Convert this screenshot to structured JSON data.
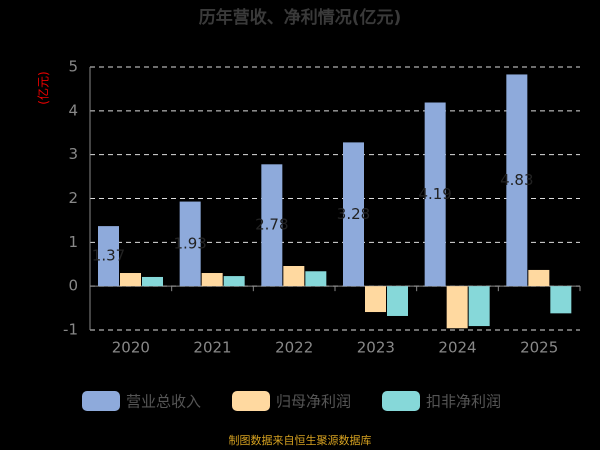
{
  "chart_data": {
    "type": "bar",
    "title": "历年营收、净利情况(亿元)",
    "y_label": "(亿元)",
    "categories": [
      "2020",
      "2021",
      "2022",
      "2023",
      "2024",
      "2025"
    ],
    "series": [
      {
        "name": "营业总收入",
        "color": "#8eaadb",
        "values": [
          1.37,
          1.93,
          2.78,
          3.28,
          4.19,
          4.83
        ],
        "labels": true
      },
      {
        "name": "归母净利润",
        "color": "#ffd9a0",
        "values": [
          0.3,
          0.3,
          0.46,
          -0.59,
          -0.96,
          0.37
        ]
      },
      {
        "name": "扣非净利润",
        "color": "#86d8d9",
        "values": [
          0.21,
          0.23,
          0.34,
          -0.68,
          -0.91,
          -0.62
        ]
      }
    ],
    "ylim": [
      -1,
      5
    ],
    "yticks": [
      -1,
      0,
      1,
      2,
      3,
      4,
      5
    ],
    "grid": true,
    "source": "制图数据来自恒生聚源数据库"
  }
}
